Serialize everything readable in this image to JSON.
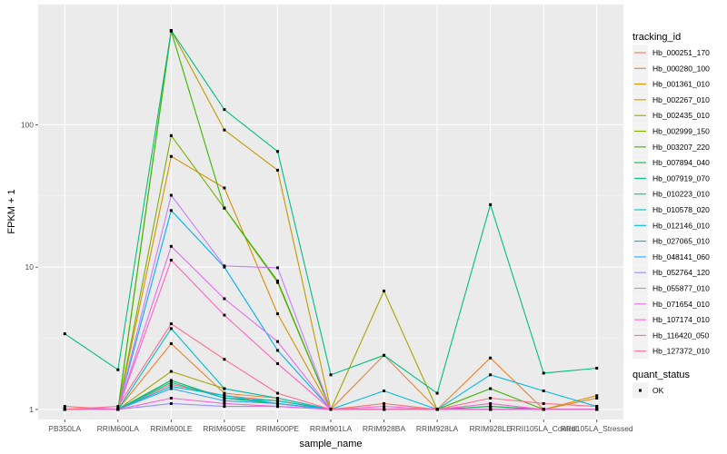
{
  "chart_data": {
    "type": "line",
    "xlabel": "sample_name",
    "ylabel": "FPKM + 1",
    "y_scale": "log10",
    "ylim": [
      0.85,
      700
    ],
    "y_ticks": [
      1,
      10,
      100
    ],
    "y_tick_labels": [
      "1",
      "10",
      "100"
    ],
    "grid": true,
    "legend_position": "right",
    "categories": [
      "PB350LA",
      "RRIM600LA",
      "RRIM600LE",
      "RRIM600SE",
      "RRIM600PE",
      "RRIM901LA",
      "RRIM928BA",
      "RRIM928LA",
      "RRIM928LE",
      "RRII105LA_Control",
      "RRII105LA_Stressed"
    ],
    "legend_title": "tracking_id",
    "series": [
      {
        "name": "Hb_000251_170",
        "color": "#F8766D",
        "values": [
          1.05,
          1.0,
          1.5,
          1.25,
          1.15,
          1.0,
          1.1,
          1.0,
          1.05,
          1.0,
          1.0
        ]
      },
      {
        "name": "Hb_000280_100",
        "color": "#EA8331",
        "values": [
          1.0,
          1.0,
          2.9,
          1.3,
          1.2,
          1.0,
          2.4,
          1.0,
          2.3,
          1.0,
          1.2
        ]
      },
      {
        "name": "Hb_001361_010",
        "color": "#D89000",
        "values": [
          1.0,
          1.0,
          60,
          36,
          4.7,
          1.0,
          1.0,
          1.0,
          1.0,
          1.0,
          1.25
        ]
      },
      {
        "name": "Hb_002267_010",
        "color": "#C09B00",
        "values": [
          1.0,
          1.0,
          460,
          92,
          48,
          1.0,
          1.0,
          1.0,
          1.0,
          1.0,
          1.0
        ]
      },
      {
        "name": "Hb_002435_010",
        "color": "#A3A500",
        "values": [
          1.0,
          1.0,
          1.85,
          1.4,
          1.2,
          1.0,
          6.8,
          1.0,
          1.0,
          1.0,
          1.0
        ]
      },
      {
        "name": "Hb_002999_150",
        "color": "#7CAE00",
        "values": [
          1.0,
          1.0,
          84,
          26,
          7.8,
          1.0,
          1.0,
          1.0,
          1.0,
          1.0,
          1.0
        ]
      },
      {
        "name": "Hb_003207_220",
        "color": "#39B600",
        "values": [
          1.0,
          1.0,
          455,
          26,
          8.0,
          1.0,
          1.0,
          1.0,
          1.4,
          1.0,
          1.0
        ]
      },
      {
        "name": "Hb_007894_040",
        "color": "#00BB4E",
        "values": [
          1.0,
          1.0,
          1.6,
          1.2,
          1.1,
          1.0,
          1.0,
          1.0,
          1.05,
          1.0,
          1.0
        ]
      },
      {
        "name": "Hb_007919_070",
        "color": "#00BF7D",
        "values": [
          3.4,
          1.9,
          460,
          128,
          65,
          1.75,
          2.4,
          1.3,
          27.5,
          1.8,
          1.95
        ]
      },
      {
        "name": "Hb_010223_010",
        "color": "#00C1A3",
        "values": [
          1.0,
          1.0,
          1.55,
          1.2,
          1.15,
          1.0,
          1.0,
          1.0,
          1.0,
          1.0,
          1.0
        ]
      },
      {
        "name": "Hb_010578_020",
        "color": "#00BFC4",
        "values": [
          1.0,
          1.0,
          3.7,
          1.4,
          1.2,
          1.0,
          1.0,
          1.0,
          1.0,
          1.0,
          1.0
        ]
      },
      {
        "name": "Hb_012146_010",
        "color": "#00BAE0",
        "values": [
          1.0,
          1.0,
          1.45,
          1.25,
          1.1,
          1.0,
          1.35,
          1.0,
          1.75,
          1.35,
          1.05
        ]
      },
      {
        "name": "Hb_027065_010",
        "color": "#00B0F6",
        "values": [
          1.0,
          1.0,
          25,
          10,
          2.6,
          1.0,
          1.0,
          1.0,
          1.0,
          1.0,
          1.0
        ]
      },
      {
        "name": "Hb_048141_060",
        "color": "#35A2FF",
        "values": [
          1.0,
          1.0,
          1.4,
          1.15,
          1.1,
          1.0,
          1.0,
          1.0,
          1.0,
          1.0,
          1.0
        ]
      },
      {
        "name": "Hb_052764_120",
        "color": "#9590FF",
        "values": [
          1.0,
          1.0,
          1.1,
          1.05,
          1.05,
          1.0,
          1.0,
          1.0,
          1.0,
          1.0,
          1.0
        ]
      },
      {
        "name": "Hb_055877_010",
        "color": "#C77CFF",
        "values": [
          1.0,
          1.0,
          32,
          10.2,
          9.9,
          1.0,
          1.0,
          1.0,
          1.0,
          1.0,
          1.0
        ]
      },
      {
        "name": "Hb_071654_010",
        "color": "#E76BF3",
        "values": [
          1.0,
          1.0,
          14,
          6,
          3,
          1.0,
          1.0,
          1.0,
          1.0,
          1.0,
          1.0
        ]
      },
      {
        "name": "Hb_107174_010",
        "color": "#FA62DB",
        "values": [
          1.0,
          1.0,
          1.2,
          1.1,
          1.05,
          1.0,
          1.05,
          1.0,
          1.1,
          1.0,
          1.0
        ]
      },
      {
        "name": "Hb_116420_050",
        "color": "#FF62BC",
        "values": [
          1.0,
          1.0,
          11.2,
          4.6,
          2.1,
          1.0,
          1.0,
          1.0,
          1.0,
          1.0,
          1.0
        ]
      },
      {
        "name": "Hb_127372_010",
        "color": "#FF6C91",
        "values": [
          1.0,
          1.05,
          4.0,
          2.25,
          1.3,
          1.0,
          1.0,
          1.0,
          1.2,
          1.1,
          1.05
        ]
      }
    ],
    "shape_legend": {
      "title": "quant_status",
      "items": [
        {
          "name": "OK"
        }
      ]
    }
  }
}
